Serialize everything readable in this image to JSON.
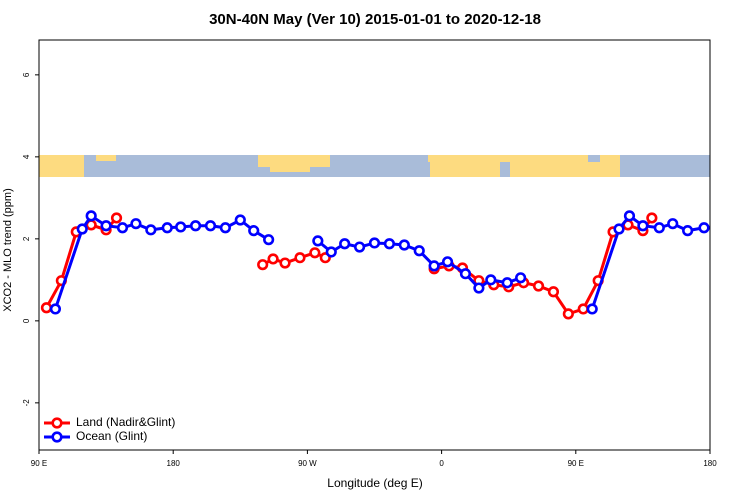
{
  "chart_data": {
    "type": "line",
    "title": "30N-40N May (Ver 10)   2015-01-01 to 2020-12-18",
    "x_label": "Longitude (deg E)",
    "y_label": "XCO2 - MLO trend (ppm)",
    "xlim": [
      90,
      540
    ],
    "ylim": [
      -3.15,
      6.85
    ],
    "xticks": [
      {
        "value": 90,
        "label": "90 E"
      },
      180,
      {
        "value": 270,
        "label": "90 W"
      },
      {
        "value": 360,
        "label": "0"
      },
      {
        "value": 450,
        "label": "90 E"
      },
      {
        "value": 540,
        "label": "180"
      }
    ],
    "yticks": [
      -2,
      0,
      2,
      4,
      6
    ],
    "legend": "bottom-left",
    "series": [
      {
        "name": "Land (Nadir&Glint)",
        "color": "#ff0000",
        "x": [
          95,
          105,
          115,
          125,
          135,
          142,
          190,
          240,
          247,
          255,
          265,
          275,
          282,
          320,
          355,
          365,
          374,
          385,
          395,
          405,
          415,
          425,
          435,
          445,
          455,
          465,
          475,
          485,
          495,
          501
        ],
        "values": [
          0.32,
          0.98,
          2.17,
          2.34,
          2.22,
          2.51,
          null,
          1.37,
          1.51,
          1.41,
          1.54,
          1.66,
          1.54,
          null,
          1.27,
          1.34,
          1.29,
          0.98,
          0.88,
          0.83,
          0.93,
          0.85,
          0.71,
          0.17,
          0.29,
          0.98,
          2.17,
          2.34,
          2.2,
          2.51
        ]
      },
      {
        "name": "Ocean (Glint)",
        "color": "#0000ff",
        "x": [
          101,
          119,
          125,
          135,
          146,
          155,
          165,
          176,
          185,
          195,
          205,
          215,
          225,
          234,
          244,
          260,
          277,
          286,
          295,
          305,
          315,
          325,
          335,
          345,
          355,
          364,
          376,
          385,
          393,
          404,
          413,
          440,
          461,
          479,
          486,
          495,
          506,
          515,
          525,
          536
        ],
        "values": [
          0.29,
          2.24,
          2.56,
          2.32,
          2.27,
          2.37,
          2.22,
          2.27,
          2.29,
          2.32,
          2.32,
          2.27,
          2.46,
          2.2,
          1.98,
          null,
          1.95,
          1.68,
          1.88,
          1.8,
          1.9,
          1.88,
          1.85,
          1.71,
          1.34,
          1.44,
          1.15,
          0.8,
          1.0,
          0.93,
          1.05,
          null,
          0.29,
          2.24,
          2.56,
          2.32,
          2.27,
          2.37,
          2.2,
          2.27
        ]
      }
    ]
  }
}
